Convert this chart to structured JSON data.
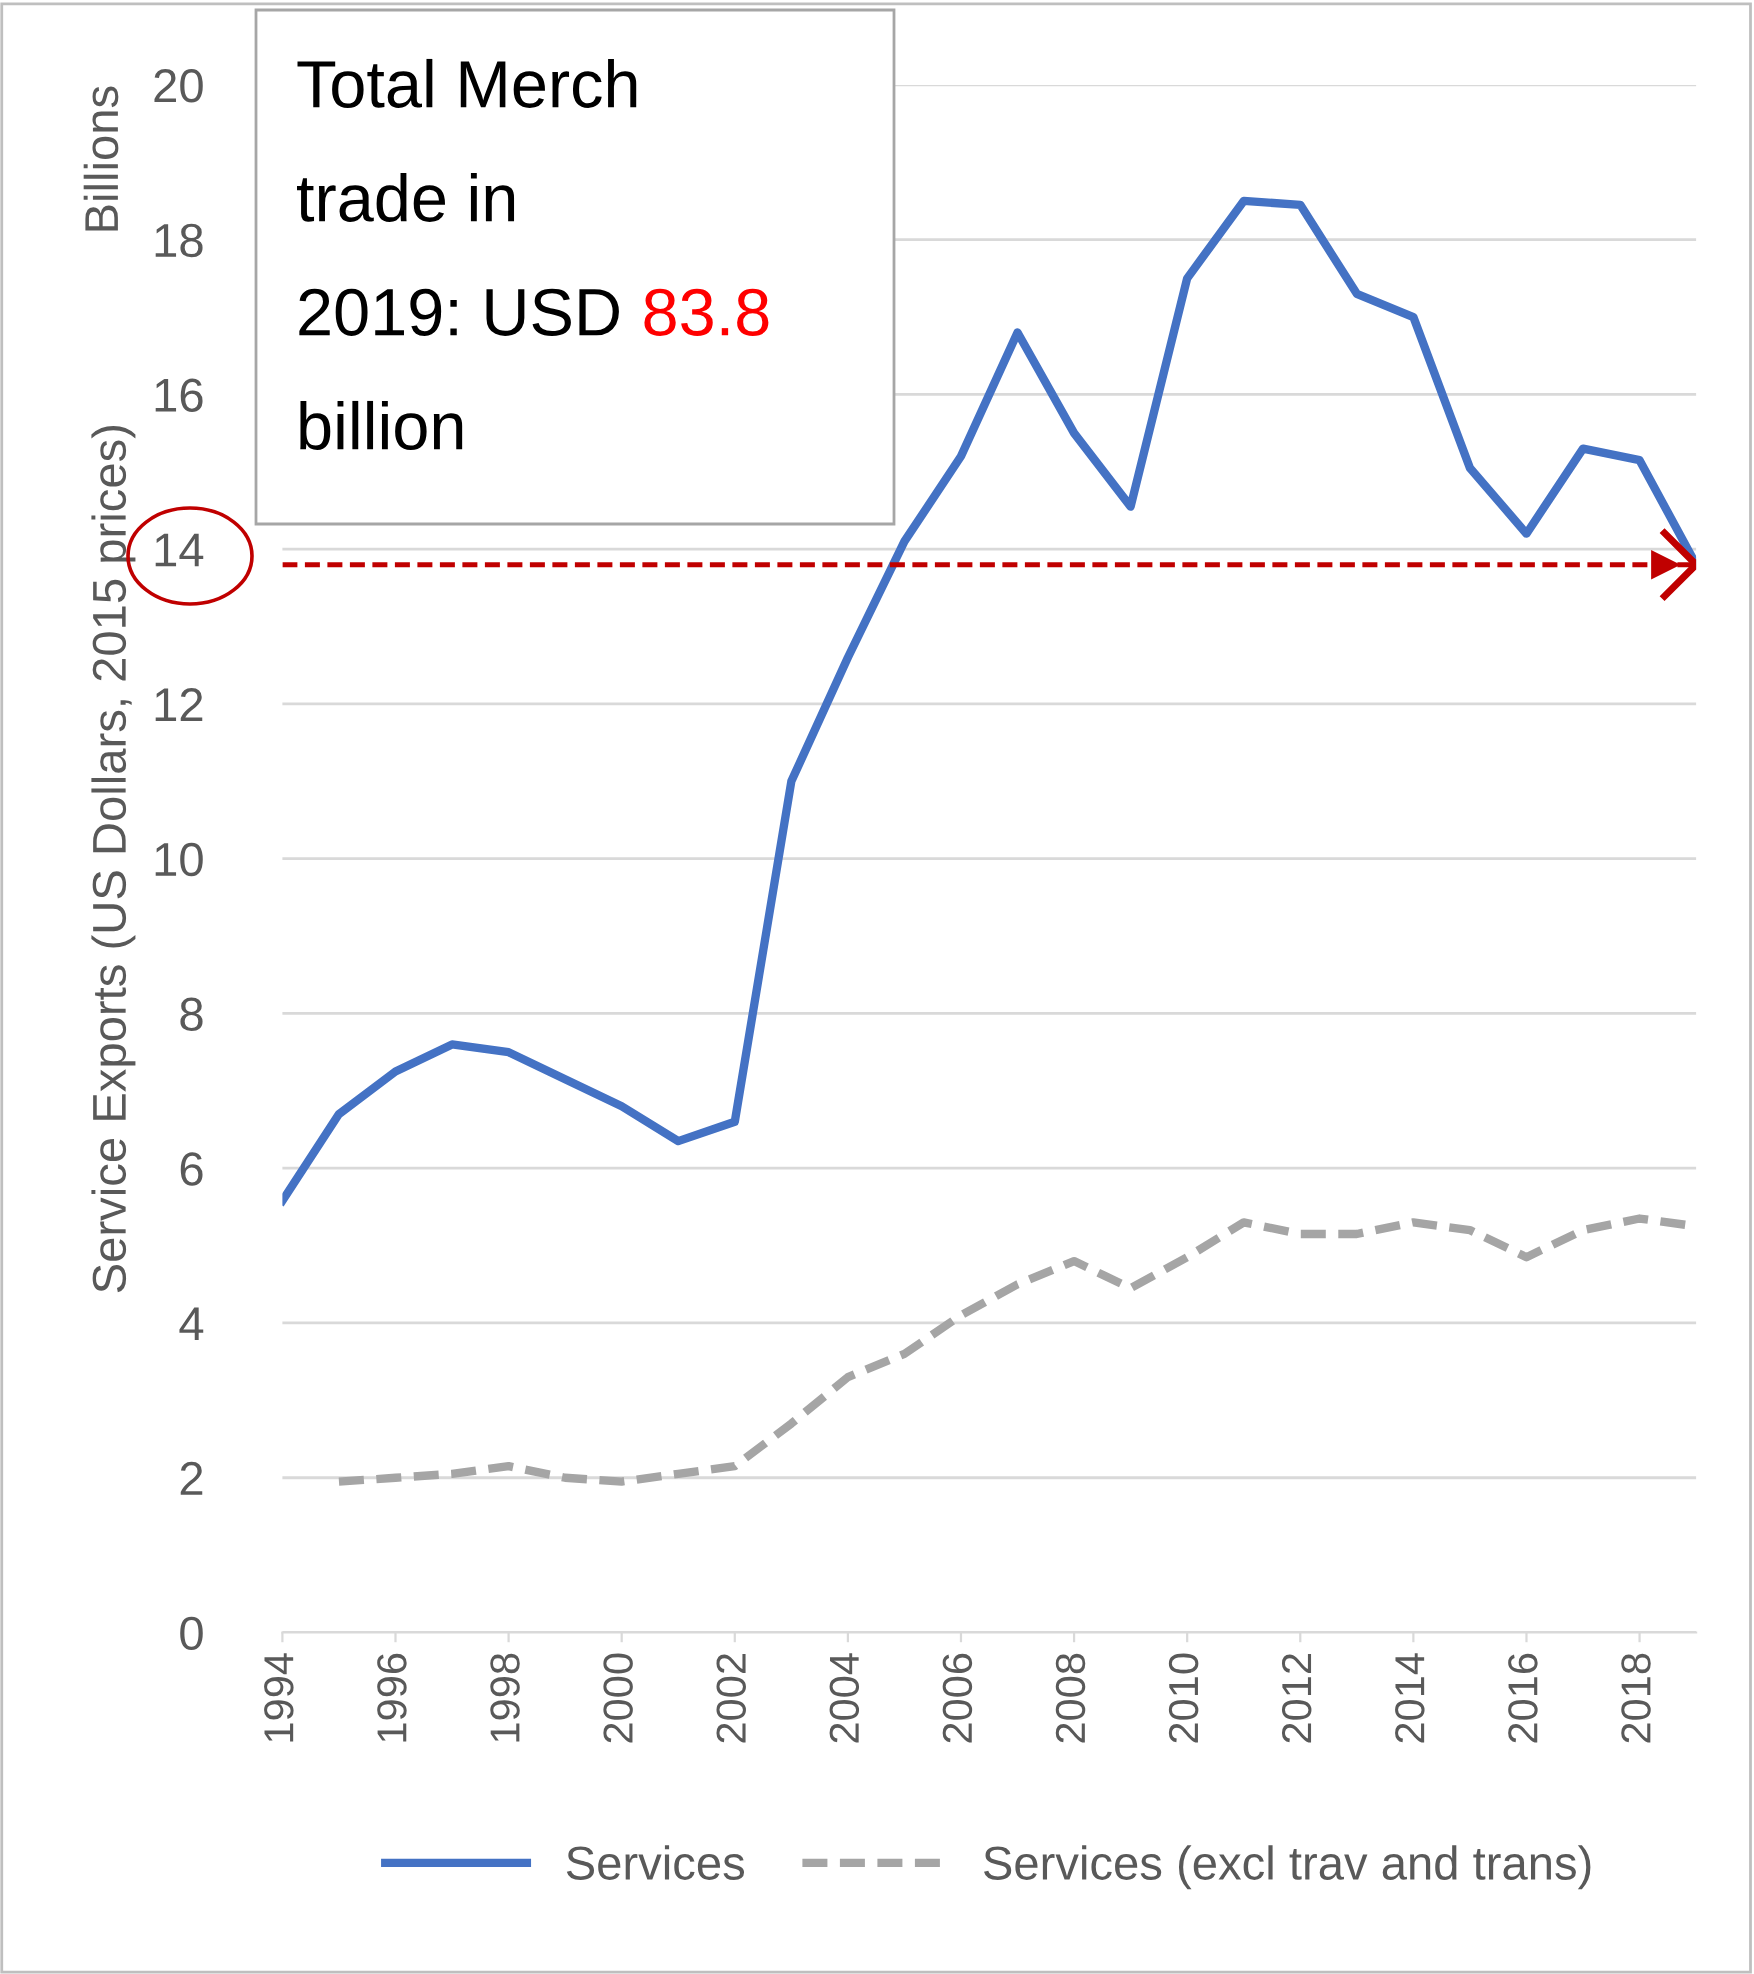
{
  "chart_data": {
    "type": "line",
    "ylabel": "Service Exports (US Dollars, 2015 prices)",
    "x": [
      1994,
      1995,
      1996,
      1997,
      1998,
      1999,
      2000,
      2001,
      2002,
      2003,
      2004,
      2005,
      2006,
      2007,
      2008,
      2009,
      2010,
      2011,
      2012,
      2013,
      2014,
      2015,
      2016,
      2017,
      2018,
      2019
    ],
    "series": [
      {
        "name": "Services",
        "color": "#4472c4",
        "line_style": "solid",
        "values": [
          5.58,
          6.7,
          7.25,
          7.6,
          7.5,
          7.15,
          6.8,
          6.35,
          6.6,
          11.0,
          12.6,
          14.1,
          15.2,
          16.8,
          15.5,
          14.55,
          17.5,
          18.5,
          18.45,
          17.3,
          17.0,
          15.05,
          14.2,
          15.3,
          15.15,
          13.8
        ]
      },
      {
        "name": "Services (excl trav and trans)",
        "color": "#a5a5a5",
        "line_style": "dashed",
        "values": [
          null,
          1.95,
          2.0,
          2.05,
          2.15,
          2.0,
          1.95,
          2.05,
          2.15,
          2.7,
          3.3,
          3.6,
          4.1,
          4.5,
          4.8,
          4.45,
          4.85,
          5.3,
          5.15,
          5.15,
          5.3,
          5.2,
          4.85,
          5.2,
          5.35,
          5.25
        ]
      },
      {
        "type": "scatter",
        "color": "#c00000",
        "marker": "cross",
        "x": [
          2019
        ],
        "values": [
          13.8
        ]
      }
    ],
    "ref_lines": [
      {
        "axis": "y",
        "value": 13.8,
        "color": "#c00000",
        "line_style": "dashed"
      }
    ],
    "xlim": [
      1994,
      2019
    ],
    "xticks": [
      1994,
      1996,
      1998,
      2000,
      2002,
      2004,
      2006,
      2008,
      2010,
      2012,
      2014,
      2016,
      2018
    ],
    "ylim": [
      0,
      20
    ],
    "yticks": [
      0,
      2,
      4,
      6,
      8,
      10,
      12,
      14,
      16,
      18,
      20
    ],
    "grid": "y",
    "legend": "bottom",
    "marker": "none",
    "annotations": [
      "Billions",
      "Total Merch trade in 2019: USD",
      "83.8",
      "billion"
    ]
  }
}
